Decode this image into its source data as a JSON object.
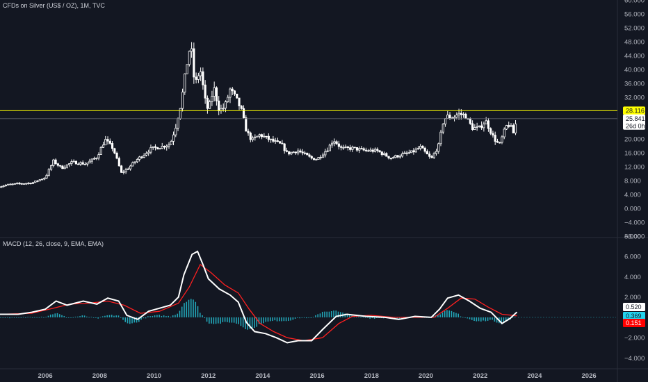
{
  "title": "CFDs on Silver (US$ / OZ), 1M, TVC",
  "macd_title": "MACD (12, 26, close, 9, EMA, EMA)",
  "price_axis_ticks": [
    "60.000",
    "56.000",
    "52.000",
    "48.000",
    "44.000",
    "40.000",
    "36.000",
    "32.000",
    "28.000",
    "24.000",
    "20.000",
    "16.000",
    "12.000",
    "8.000",
    "4.000",
    "0.000",
    "−4.000",
    "−8.000"
  ],
  "macd_axis_ticks": [
    "8.000",
    "6.000",
    "4.000",
    "2.000",
    "−2.000",
    "−4.000"
  ],
  "x_axis_ticks": [
    "2006",
    "2008",
    "2010",
    "2012",
    "2014",
    "2016",
    "2018",
    "2020",
    "2022",
    "2024",
    "2026"
  ],
  "horizontal_line": {
    "value": 28.116,
    "label": "28.116",
    "color": "#ffff00"
  },
  "last_price": {
    "value": 25.841,
    "label": "25.841",
    "countdown": "26d 0h"
  },
  "macd_tags": [
    {
      "label": "0.520",
      "value": 0.52,
      "bg": "#ffffff",
      "fg": "#131722"
    },
    {
      "label": "0.369",
      "value": 0.369,
      "bg": "#22d3ee",
      "fg": "#131722"
    },
    {
      "label": "0.151",
      "value": 0.151,
      "bg": "#ff0000",
      "fg": "#ffffff"
    }
  ],
  "colors": {
    "background": "#131722",
    "candle": "#ffffff",
    "macd_line": "#ffffff",
    "signal_line": "#ff2020",
    "histogram": "#22a6b8",
    "grid_separator": "#2a2e39"
  },
  "chart_data": [
    {
      "type": "candlestick",
      "title": "CFDs on Silver (US$ / OZ), 1M, TVC",
      "x_range": [
        2004.2,
        2027.0
      ],
      "ylim": [
        -8,
        60
      ],
      "horizontal_line": 28.116,
      "series": [
        {
          "key": "silver_monthly_close",
          "points": [
            [
              2004.3,
              6.2
            ],
            [
              2004.6,
              6.8
            ],
            [
              2005.0,
              7.1
            ],
            [
              2005.5,
              7.3
            ],
            [
              2006.0,
              8.9
            ],
            [
              2006.3,
              13.6
            ],
            [
              2006.6,
              11.6
            ],
            [
              2007.0,
              13.3
            ],
            [
              2007.5,
              12.8
            ],
            [
              2007.9,
              14.8
            ],
            [
              2008.2,
              19.8
            ],
            [
              2008.5,
              17.2
            ],
            [
              2008.8,
              10.2
            ],
            [
              2009.0,
              11.2
            ],
            [
              2009.4,
              14.2
            ],
            [
              2009.9,
              17.2
            ],
            [
              2010.3,
              17.8
            ],
            [
              2010.6,
              18.6
            ],
            [
              2010.8,
              23.6
            ],
            [
              2011.0,
              30.5
            ],
            [
              2011.2,
              41.2
            ],
            [
              2011.35,
              47.6
            ],
            [
              2011.5,
              35.2
            ],
            [
              2011.7,
              40.2
            ],
            [
              2011.9,
              30.2
            ],
            [
              2012.0,
              28.2
            ],
            [
              2012.2,
              34.8
            ],
            [
              2012.4,
              28.2
            ],
            [
              2012.6,
              29.2
            ],
            [
              2012.8,
              34.2
            ],
            [
              2013.0,
              31.8
            ],
            [
              2013.2,
              28.6
            ],
            [
              2013.4,
              22.2
            ],
            [
              2013.6,
              19.6
            ],
            [
              2013.9,
              21.2
            ],
            [
              2014.3,
              19.6
            ],
            [
              2014.7,
              18.3
            ],
            [
              2014.9,
              15.8
            ],
            [
              2015.3,
              16.6
            ],
            [
              2015.8,
              14.4
            ],
            [
              2016.0,
              14.2
            ],
            [
              2016.4,
              17.2
            ],
            [
              2016.6,
              19.8
            ],
            [
              2016.9,
              17.2
            ],
            [
              2017.3,
              17.3
            ],
            [
              2017.8,
              16.6
            ],
            [
              2018.2,
              16.6
            ],
            [
              2018.7,
              14.5
            ],
            [
              2019.0,
              15.2
            ],
            [
              2019.5,
              16.2
            ],
            [
              2019.8,
              17.6
            ],
            [
              2020.2,
              14.2
            ],
            [
              2020.5,
              18.6
            ],
            [
              2020.6,
              24.2
            ],
            [
              2020.75,
              26.5
            ],
            [
              2021.0,
              26.2
            ],
            [
              2021.2,
              27.2
            ],
            [
              2021.45,
              26.8
            ],
            [
              2021.7,
              23.2
            ],
            [
              2021.95,
              23.0
            ],
            [
              2022.2,
              25.2
            ],
            [
              2022.5,
              20.2
            ],
            [
              2022.7,
              18.2
            ],
            [
              2022.95,
              23.6
            ],
            [
              2023.1,
              24.2
            ],
            [
              2023.2,
              21.2
            ],
            [
              2023.35,
              25.8
            ]
          ]
        }
      ]
    },
    {
      "type": "line",
      "title": "MACD (12, 26, close, 9, EMA, EMA)",
      "x_range": [
        2004.2,
        2027.0
      ],
      "ylim": [
        -5,
        8
      ],
      "series": [
        {
          "key": "macd",
          "points": [
            [
              2004.2,
              0.3
            ],
            [
              2005.0,
              0.3
            ],
            [
              2005.5,
              0.5
            ],
            [
              2006.0,
              0.8
            ],
            [
              2006.4,
              1.6
            ],
            [
              2006.8,
              1.2
            ],
            [
              2007.4,
              1.6
            ],
            [
              2007.9,
              1.3
            ],
            [
              2008.3,
              1.9
            ],
            [
              2008.7,
              1.6
            ],
            [
              2009.0,
              0.2
            ],
            [
              2009.4,
              -0.2
            ],
            [
              2009.8,
              0.6
            ],
            [
              2010.2,
              0.9
            ],
            [
              2010.6,
              1.2
            ],
            [
              2010.9,
              2.0
            ],
            [
              2011.1,
              4.2
            ],
            [
              2011.4,
              6.2
            ],
            [
              2011.6,
              6.5
            ],
            [
              2011.8,
              5.2
            ],
            [
              2012.0,
              3.8
            ],
            [
              2012.4,
              2.8
            ],
            [
              2012.8,
              2.2
            ],
            [
              2013.1,
              1.5
            ],
            [
              2013.4,
              -0.5
            ],
            [
              2013.7,
              -1.4
            ],
            [
              2014.1,
              -1.6
            ],
            [
              2014.5,
              -2.0
            ],
            [
              2014.9,
              -2.5
            ],
            [
              2015.3,
              -2.3
            ],
            [
              2015.8,
              -2.3
            ],
            [
              2016.2,
              -1.2
            ],
            [
              2016.7,
              0.1
            ],
            [
              2017.1,
              0.3
            ],
            [
              2017.8,
              0.1
            ],
            [
              2018.5,
              0.0
            ],
            [
              2019.0,
              -0.2
            ],
            [
              2019.6,
              0.1
            ],
            [
              2020.2,
              0.0
            ],
            [
              2020.5,
              0.8
            ],
            [
              2020.8,
              1.9
            ],
            [
              2021.2,
              2.2
            ],
            [
              2021.6,
              1.6
            ],
            [
              2022.0,
              0.9
            ],
            [
              2022.4,
              0.5
            ],
            [
              2022.8,
              -0.6
            ],
            [
              2023.1,
              -0.1
            ],
            [
              2023.35,
              0.52
            ]
          ]
        },
        {
          "key": "signal",
          "points": [
            [
              2004.2,
              0.3
            ],
            [
              2005.5,
              0.4
            ],
            [
              2006.3,
              0.9
            ],
            [
              2006.9,
              1.3
            ],
            [
              2007.6,
              1.4
            ],
            [
              2008.3,
              1.6
            ],
            [
              2008.9,
              1.2
            ],
            [
              2009.5,
              0.4
            ],
            [
              2010.2,
              0.6
            ],
            [
              2010.9,
              1.4
            ],
            [
              2011.3,
              3.0
            ],
            [
              2011.7,
              5.2
            ],
            [
              2012.1,
              4.4
            ],
            [
              2012.6,
              3.2
            ],
            [
              2013.1,
              2.4
            ],
            [
              2013.5,
              0.8
            ],
            [
              2013.9,
              -0.6
            ],
            [
              2014.4,
              -1.4
            ],
            [
              2014.9,
              -2.0
            ],
            [
              2015.5,
              -2.3
            ],
            [
              2016.2,
              -2.0
            ],
            [
              2016.8,
              -0.6
            ],
            [
              2017.3,
              0.1
            ],
            [
              2018.0,
              0.2
            ],
            [
              2018.8,
              0.0
            ],
            [
              2019.5,
              0.0
            ],
            [
              2020.3,
              0.0
            ],
            [
              2020.8,
              0.9
            ],
            [
              2021.3,
              1.9
            ],
            [
              2021.8,
              1.8
            ],
            [
              2022.3,
              1.0
            ],
            [
              2022.8,
              0.3
            ],
            [
              2023.35,
              0.151
            ]
          ]
        },
        {
          "key": "histogram",
          "points": [
            [
              2006.4,
              0.6
            ],
            [
              2008.6,
              0.4
            ],
            [
              2011.4,
              1.5
            ],
            [
              2011.6,
              1.3
            ],
            [
              2011.9,
              -0.4
            ],
            [
              2013.4,
              -1.2
            ],
            [
              2013.7,
              -1.2
            ],
            [
              2016.2,
              0.4
            ],
            [
              2020.8,
              1.0
            ],
            [
              2021.6,
              -0.5
            ],
            [
              2022.8,
              -0.7
            ]
          ]
        }
      ]
    }
  ]
}
